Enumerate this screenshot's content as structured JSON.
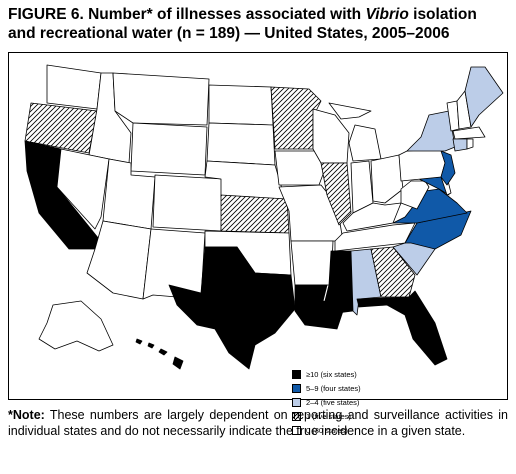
{
  "title": {
    "prefix": "FIGURE 6. Number* of illnesses associated with ",
    "italic": "Vibrio",
    "suffix": " isolation and recreational water (n = 189) — United States, 2005–2006"
  },
  "colors": {
    "ge10": "#000000",
    "five_to_nine": "#1059a8",
    "two_to_four": "#bccde8",
    "one": "hatch",
    "zero": "#ffffff",
    "state_border": "#000000"
  },
  "legend": [
    {
      "key": "ge10",
      "label": "≥10 (six states)"
    },
    {
      "key": "five_to_nine",
      "label": "5–9 (four states)"
    },
    {
      "key": "two_to_four",
      "label": "2–4 (five states)"
    },
    {
      "key": "one",
      "label": "1 (five states)"
    },
    {
      "key": "zero",
      "label": "0 (30 states)"
    }
  ],
  "states": {
    "ge10": [
      "California",
      "Texas",
      "Louisiana",
      "Mississippi",
      "Florida",
      "Hawaii"
    ],
    "five_to_nine": [
      "Virginia",
      "North Carolina",
      "Maryland",
      "New Jersey"
    ],
    "two_to_four": [
      "Alabama",
      "South Carolina",
      "New York",
      "Connecticut",
      "Maine"
    ],
    "one": [
      "Oregon",
      "Minnesota",
      "Illinois",
      "Kansas",
      "Georgia"
    ]
  },
  "footnote": {
    "lead": "*Note:",
    "text": " These numbers are largely dependent on reporting and surveillance activities in individual states and do not necessarily indicate the true incidence in a given state."
  }
}
